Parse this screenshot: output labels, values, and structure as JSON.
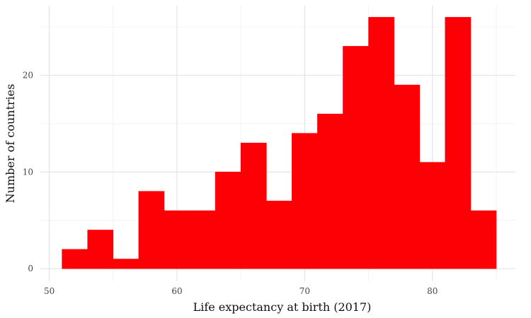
{
  "chart_data": {
    "type": "bar",
    "subtype": "histogram",
    "xlabel": "Life expectancy at birth (2017)",
    "ylabel": "Number of countries",
    "xlim": [
      49.3,
      86.5
    ],
    "ylim": [
      -1.3,
      27.2
    ],
    "x_ticks": [
      50,
      60,
      70,
      80
    ],
    "y_ticks": [
      0,
      10,
      20
    ],
    "bin_width": 2,
    "bins": [
      {
        "start": 51,
        "end": 53,
        "count": 2
      },
      {
        "start": 53,
        "end": 55,
        "count": 4
      },
      {
        "start": 55,
        "end": 57,
        "count": 1
      },
      {
        "start": 57,
        "end": 59,
        "count": 8
      },
      {
        "start": 59,
        "end": 61,
        "count": 6
      },
      {
        "start": 61,
        "end": 63,
        "count": 6
      },
      {
        "start": 63,
        "end": 65,
        "count": 10
      },
      {
        "start": 65,
        "end": 67,
        "count": 13
      },
      {
        "start": 67,
        "end": 69,
        "count": 7
      },
      {
        "start": 69,
        "end": 71,
        "count": 14
      },
      {
        "start": 71,
        "end": 73,
        "count": 16
      },
      {
        "start": 73,
        "end": 75,
        "count": 23
      },
      {
        "start": 75,
        "end": 77,
        "count": 26
      },
      {
        "start": 77,
        "end": 79,
        "count": 19
      },
      {
        "start": 79,
        "end": 81,
        "count": 11
      },
      {
        "start": 81,
        "end": 83,
        "count": 26
      },
      {
        "start": 83,
        "end": 85,
        "count": 6
      }
    ],
    "bar_color": "#fc0006",
    "grid": true,
    "legend": "none"
  }
}
